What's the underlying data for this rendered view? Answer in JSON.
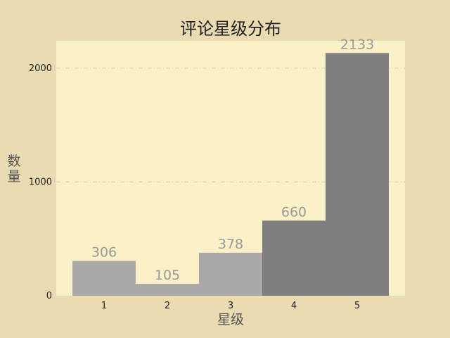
{
  "chart_data": {
    "type": "bar",
    "title": "评论星级分布",
    "xlabel": "星级",
    "ylabel": "数量",
    "categories": [
      "1",
      "2",
      "3",
      "4",
      "5"
    ],
    "values": [
      306,
      105,
      378,
      660,
      2133
    ],
    "ylim": [
      0,
      2240
    ],
    "yticks": [
      0,
      1000,
      2000
    ],
    "grid": "y",
    "legend": "none",
    "colors": {
      "figure_bg": "#eadbb2",
      "plot_bg": "#fbf1c8",
      "bar_low": "#a9a9a9",
      "bar_high": "#7f7f7f",
      "gridline": "#d8ccb0"
    },
    "bar_color_by_index": [
      "low",
      "low",
      "low",
      "high",
      "high"
    ]
  }
}
